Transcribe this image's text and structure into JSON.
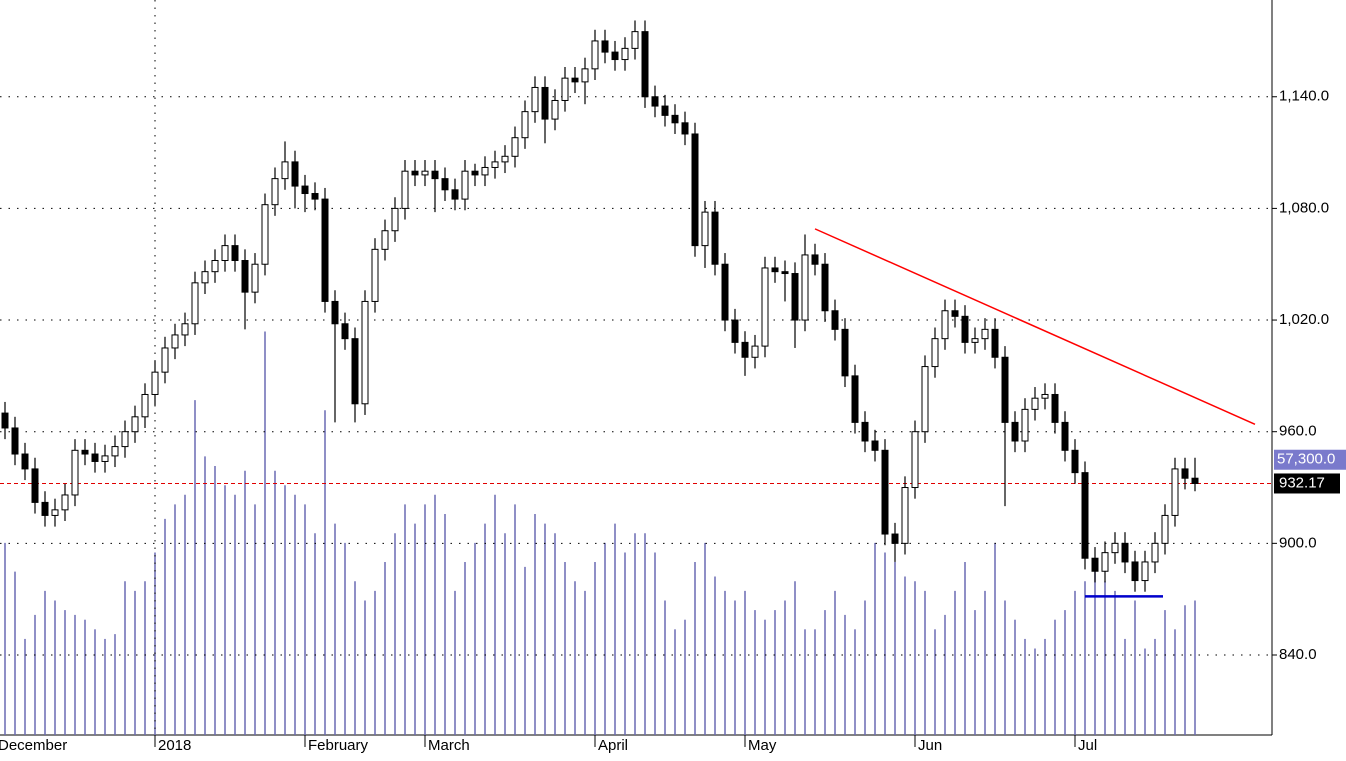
{
  "chart_data": {
    "type": "candlestick",
    "open": [
      970,
      962,
      948,
      940,
      922,
      915,
      918,
      926,
      950,
      948,
      944,
      947,
      952,
      960,
      968,
      980,
      992,
      1005,
      1012,
      1018,
      1040,
      1046,
      1052,
      1060,
      1052,
      1035,
      1050,
      1082,
      1096,
      1105,
      1092,
      1088,
      1085,
      1030,
      1018,
      1010,
      975,
      1030,
      1058,
      1068,
      1080,
      1100,
      1098,
      1100,
      1096,
      1090,
      1085,
      1100,
      1098,
      1102,
      1105,
      1108,
      1118,
      1132,
      1145,
      1128,
      1138,
      1150,
      1148,
      1155,
      1170,
      1164,
      1160,
      1166,
      1175,
      1140,
      1135,
      1130,
      1126,
      1120,
      1060,
      1078,
      1050,
      1020,
      1008,
      1000,
      1006,
      1048,
      1046,
      1045,
      1020,
      1055,
      1050,
      1025,
      1015,
      990,
      965,
      955,
      950,
      905,
      900,
      930,
      960,
      995,
      1010,
      1025,
      1022,
      1008,
      1010,
      1015,
      1000,
      965,
      955,
      972,
      978,
      980,
      965,
      950,
      938,
      892,
      885,
      895,
      900,
      890,
      880,
      890,
      900,
      915,
      940,
      935
    ],
    "high": [
      976,
      968,
      954,
      946,
      928,
      924,
      932,
      956,
      956,
      954,
      953,
      958,
      966,
      974,
      986,
      998,
      1011,
      1018,
      1024,
      1046,
      1052,
      1058,
      1066,
      1066,
      1058,
      1056,
      1088,
      1102,
      1116,
      1111,
      1098,
      1094,
      1091,
      1036,
      1024,
      1016,
      1036,
      1064,
      1074,
      1086,
      1106,
      1106,
      1106,
      1106,
      1102,
      1096,
      1106,
      1104,
      1108,
      1111,
      1114,
      1124,
      1138,
      1151,
      1151,
      1144,
      1156,
      1156,
      1161,
      1176,
      1176,
      1170,
      1172,
      1181,
      1181,
      1146,
      1141,
      1136,
      1132,
      1126,
      1084,
      1084,
      1056,
      1026,
      1014,
      1012,
      1054,
      1054,
      1052,
      1051,
      1066,
      1061,
      1056,
      1031,
      1021,
      996,
      971,
      961,
      956,
      911,
      936,
      966,
      1001,
      1016,
      1031,
      1031,
      1028,
      1016,
      1021,
      1021,
      1006,
      971,
      978,
      984,
      986,
      986,
      971,
      956,
      944,
      898,
      901,
      906,
      906,
      896,
      896,
      906,
      921,
      946,
      946,
      946
    ],
    "low": [
      956,
      942,
      934,
      916,
      909,
      909,
      912,
      920,
      942,
      938,
      938,
      941,
      946,
      954,
      962,
      974,
      986,
      999,
      1006,
      1012,
      1034,
      1040,
      1046,
      1046,
      1015,
      1029,
      1044,
      1076,
      1090,
      1080,
      1078,
      1079,
      1024,
      965,
      1004,
      965,
      969,
      1024,
      1052,
      1062,
      1074,
      1092,
      1092,
      1078,
      1084,
      1079,
      1079,
      1092,
      1092,
      1096,
      1099,
      1102,
      1112,
      1126,
      1115,
      1122,
      1132,
      1142,
      1136,
      1149,
      1158,
      1154,
      1154,
      1160,
      1134,
      1129,
      1124,
      1120,
      1114,
      1054,
      1048,
      1044,
      1014,
      1002,
      990,
      994,
      1000,
      1040,
      1030,
      1005,
      1014,
      1044,
      1019,
      1009,
      984,
      959,
      949,
      944,
      899,
      890,
      894,
      924,
      954,
      989,
      1004,
      1016,
      1002,
      1002,
      1004,
      994,
      920,
      949,
      949,
      966,
      972,
      959,
      944,
      932,
      886,
      879,
      879,
      889,
      884,
      874,
      874,
      884,
      894,
      909,
      929,
      928
    ],
    "close": [
      962,
      948,
      940,
      922,
      915,
      918,
      926,
      950,
      948,
      944,
      947,
      952,
      960,
      968,
      980,
      992,
      1005,
      1012,
      1018,
      1040,
      1046,
      1052,
      1060,
      1052,
      1035,
      1050,
      1082,
      1096,
      1105,
      1092,
      1088,
      1085,
      1030,
      1018,
      1010,
      975,
      1030,
      1058,
      1068,
      1080,
      1100,
      1098,
      1100,
      1096,
      1090,
      1085,
      1100,
      1098,
      1102,
      1105,
      1108,
      1118,
      1132,
      1145,
      1128,
      1138,
      1150,
      1148,
      1155,
      1170,
      1164,
      1160,
      1166,
      1175,
      1140,
      1135,
      1130,
      1126,
      1120,
      1060,
      1078,
      1050,
      1020,
      1008,
      1000,
      1006,
      1048,
      1046,
      1045,
      1020,
      1055,
      1050,
      1025,
      1015,
      990,
      965,
      955,
      950,
      905,
      900,
      930,
      960,
      995,
      1010,
      1025,
      1022,
      1008,
      1010,
      1015,
      1000,
      965,
      955,
      972,
      978,
      980,
      965,
      950,
      938,
      892,
      885,
      895,
      900,
      890,
      880,
      890,
      900,
      915,
      940,
      935,
      932.17
    ],
    "volume": [
      40000,
      34000,
      20000,
      25000,
      30000,
      28000,
      26000,
      25000,
      24000,
      22000,
      20000,
      21000,
      32000,
      30000,
      32000,
      38000,
      45000,
      48000,
      50000,
      69700,
      58000,
      56000,
      52000,
      50000,
      55000,
      48000,
      84000,
      55000,
      52000,
      50000,
      48000,
      42000,
      67600,
      44000,
      40000,
      32000,
      28000,
      30000,
      36000,
      42000,
      48000,
      44000,
      48000,
      50000,
      46000,
      30000,
      36000,
      40000,
      44000,
      50000,
      42000,
      48000,
      35000,
      46000,
      44000,
      42000,
      36000,
      32000,
      30000,
      36000,
      40000,
      44000,
      38000,
      42000,
      42000,
      38000,
      28000,
      22000,
      24000,
      36000,
      40000,
      33000,
      30000,
      28000,
      30000,
      26000,
      24000,
      26000,
      28000,
      32000,
      22000,
      22000,
      26000,
      30000,
      25000,
      22000,
      28000,
      40000,
      38000,
      36000,
      33000,
      32000,
      30000,
      22000,
      25000,
      30000,
      36000,
      26000,
      30000,
      40000,
      28000,
      24000,
      20000,
      18000,
      20000,
      24000,
      26000,
      30000,
      32000,
      36000,
      32000,
      30000,
      20000,
      28000,
      18000,
      20000,
      26000,
      22000,
      27000,
      28000
    ],
    "up_color": "#ffffff",
    "down_color": "#000000",
    "volume_color": "#6a6ab4",
    "ylim": [
      797,
      1192
    ],
    "yticks": [
      {
        "value": 840,
        "label": "840.0"
      },
      {
        "value": 900,
        "label": "900.0"
      },
      {
        "value": 960,
        "label": "960.0"
      },
      {
        "value": 1020,
        "label": "1,020.0"
      },
      {
        "value": 1080,
        "label": "1,080.0"
      },
      {
        "value": 1140,
        "label": "1,140.0"
      }
    ],
    "volume_lim": [
      0,
      153000
    ],
    "xlim": [
      -0.5,
      126.7
    ],
    "xticks": [
      {
        "value": -1,
        "label": "December"
      },
      {
        "value": 15,
        "label": "2018"
      },
      {
        "value": 30,
        "label": "February"
      },
      {
        "value": 42,
        "label": "March"
      },
      {
        "value": 59,
        "label": "April"
      },
      {
        "value": 74,
        "label": "May"
      },
      {
        "value": 91,
        "label": "Jun"
      },
      {
        "value": 107,
        "label": "Jul"
      }
    ],
    "grid": true,
    "last_price": 932.17,
    "volume_marker": {
      "value": 57300,
      "label": "57,300.0"
    },
    "trendline": {
      "color": "#ff0000",
      "x": [
        81,
        125
      ],
      "y": [
        1069,
        964
      ]
    },
    "support": {
      "color": "#0000cc",
      "x": [
        108,
        115.8
      ],
      "y": [
        871.5,
        871.5
      ]
    }
  }
}
